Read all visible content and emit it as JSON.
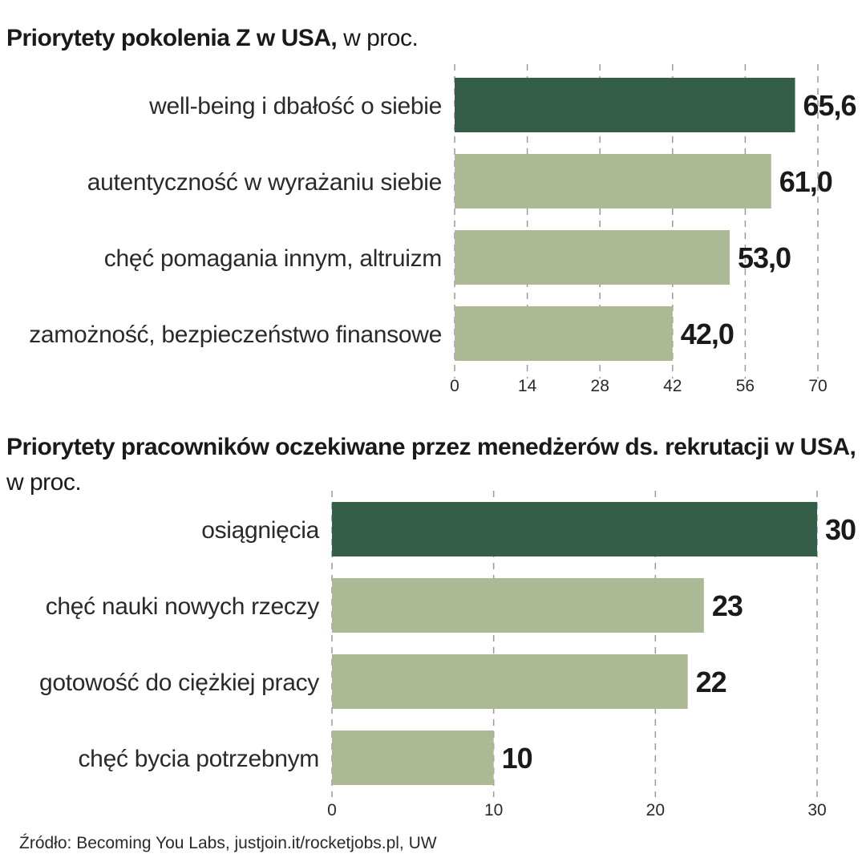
{
  "colors": {
    "highlight": "#345e48",
    "bar": "#abb994"
  },
  "chart_data": [
    {
      "type": "bar",
      "orientation": "horizontal",
      "title": "Priorytety pokolenia Z w USA,",
      "subtitle": "w proc.",
      "categories": [
        "well-being i dbałość o siebie",
        "autentyczność w wyrażaniu siebie",
        "chęć pomagania innym, altruizm",
        "zamożność, bezpieczeństwo finansowe"
      ],
      "values": [
        65.6,
        61.0,
        53.0,
        42.0
      ],
      "value_labels": [
        "65,6",
        "61,0",
        "53,0",
        "42,0"
      ],
      "highlight_index": 0,
      "xlim": [
        0,
        70
      ],
      "ticks": [
        0,
        14,
        28,
        42,
        56,
        70
      ],
      "tick_labels": [
        "0",
        "14",
        "28",
        "42",
        "56",
        "70"
      ],
      "grid": true
    },
    {
      "type": "bar",
      "orientation": "horizontal",
      "title": "Priorytety pracowników oczekiwane przez menedżerów ds. rekrutacji w USA,",
      "subtitle": "w proc.",
      "categories": [
        "osiągnięcia",
        "chęć nauki nowych rzeczy",
        "gotowość do ciężkiej pracy",
        "chęć bycia potrzebnym"
      ],
      "values": [
        30,
        23,
        22,
        10
      ],
      "value_labels": [
        "30",
        "23",
        "22",
        "10"
      ],
      "highlight_index": 0,
      "xlim": [
        0,
        30
      ],
      "ticks": [
        0,
        10,
        20,
        30
      ],
      "tick_labels": [
        "0",
        "10",
        "20",
        "30"
      ],
      "grid": true
    }
  ],
  "source": "Źródło: Becoming You Labs,  justjoin.it/rocketjobs.pl, UW"
}
